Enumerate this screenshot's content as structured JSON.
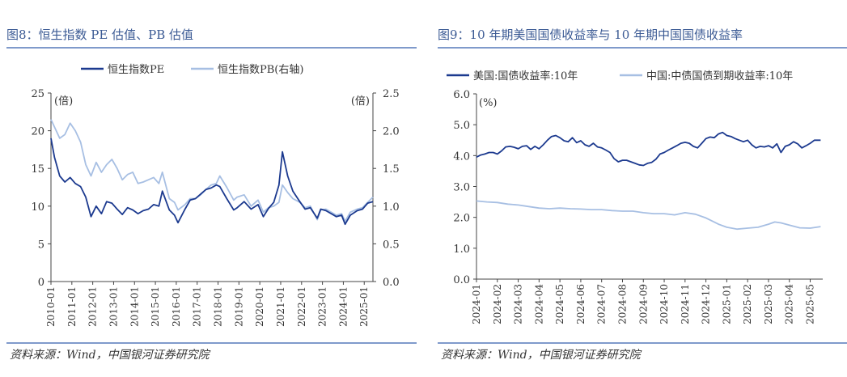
{
  "panels": {
    "left": {
      "title": "图8：恒生指数 PE 估值、PB 估值",
      "source": "资料来源：Wind，中国银河证券研究院"
    },
    "right": {
      "title": "图9：10 年期美国国债收益率与 10 年期中国国债收益率",
      "source": "资料来源：Wind，中国银河证券研究院"
    }
  },
  "chart_data": [
    {
      "type": "line",
      "title": "",
      "xlabel": "",
      "ylabel": "",
      "y_unit_left": "(倍)",
      "y_unit_right": "(倍)",
      "ylim": [
        0,
        25
      ],
      "y2lim": [
        0,
        2.5
      ],
      "yticks": [
        0,
        5,
        10,
        15,
        20,
        25
      ],
      "y2ticks": [
        "0.0",
        "0.5",
        "1.0",
        "1.5",
        "2.0",
        "2.5"
      ],
      "x_range": [
        "2010-01",
        "2025-06"
      ],
      "xtick_labels": [
        "2010-01",
        "2011-01",
        "2012-01",
        "2013-01",
        "2014-01",
        "2015-01",
        "2016-01",
        "2017-01",
        "2018-01",
        "2019-01",
        "2020-01",
        "2021-01",
        "2022-01",
        "2023-01",
        "2024-01",
        "2025-01"
      ],
      "grid": false,
      "legend": "top-center",
      "series": [
        {
          "name": "恒生指数PE",
          "axis": "left",
          "color": "#1c3a8f",
          "x": [
            "2010-01",
            "2010-03",
            "2010-06",
            "2010-09",
            "2010-12",
            "2011-03",
            "2011-06",
            "2011-09",
            "2011-12",
            "2012-03",
            "2012-06",
            "2012-09",
            "2012-12",
            "2013-03",
            "2013-06",
            "2013-09",
            "2013-12",
            "2014-03",
            "2014-06",
            "2014-09",
            "2014-12",
            "2015-03",
            "2015-05",
            "2015-09",
            "2015-12",
            "2016-02",
            "2016-06",
            "2016-09",
            "2016-12",
            "2017-03",
            "2017-06",
            "2017-09",
            "2017-12",
            "2018-02",
            "2018-06",
            "2018-10",
            "2018-12",
            "2019-04",
            "2019-08",
            "2019-12",
            "2020-03",
            "2020-06",
            "2020-09",
            "2020-12",
            "2021-02",
            "2021-05",
            "2021-08",
            "2021-12",
            "2022-03",
            "2022-06",
            "2022-10",
            "2022-12",
            "2023-03",
            "2023-06",
            "2023-09",
            "2023-12",
            "2024-02",
            "2024-05",
            "2024-09",
            "2024-12",
            "2025-03",
            "2025-06"
          ],
          "values": [
            19.0,
            16.5,
            14.0,
            13.2,
            13.8,
            13.0,
            12.6,
            11.2,
            8.6,
            10.0,
            9.0,
            10.6,
            10.4,
            9.6,
            8.9,
            9.8,
            9.5,
            9.0,
            9.4,
            9.6,
            10.2,
            10.0,
            12.0,
            9.5,
            8.8,
            7.8,
            9.6,
            10.8,
            11.0,
            11.6,
            12.2,
            12.4,
            12.8,
            12.6,
            11.0,
            9.5,
            9.8,
            10.6,
            9.6,
            10.2,
            8.6,
            9.7,
            10.5,
            12.8,
            17.2,
            14.0,
            12.0,
            10.6,
            9.6,
            9.8,
            8.4,
            9.6,
            9.4,
            9.0,
            8.6,
            8.8,
            7.6,
            8.8,
            9.4,
            9.6,
            10.4,
            10.6
          ]
        },
        {
          "name": "恒生指数PB(右轴)",
          "axis": "right",
          "color": "#a7bfe3",
          "x": [
            "2010-01",
            "2010-03",
            "2010-06",
            "2010-09",
            "2010-12",
            "2011-03",
            "2011-06",
            "2011-09",
            "2011-12",
            "2012-03",
            "2012-06",
            "2012-09",
            "2012-12",
            "2013-03",
            "2013-06",
            "2013-09",
            "2013-12",
            "2014-03",
            "2014-06",
            "2014-09",
            "2014-12",
            "2015-03",
            "2015-05",
            "2015-09",
            "2015-12",
            "2016-02",
            "2016-06",
            "2016-09",
            "2016-12",
            "2017-03",
            "2017-06",
            "2017-09",
            "2017-12",
            "2018-02",
            "2018-06",
            "2018-10",
            "2018-12",
            "2019-04",
            "2019-08",
            "2019-12",
            "2020-03",
            "2020-06",
            "2020-09",
            "2020-12",
            "2021-02",
            "2021-05",
            "2021-08",
            "2021-12",
            "2022-03",
            "2022-06",
            "2022-10",
            "2022-12",
            "2023-03",
            "2023-06",
            "2023-09",
            "2023-12",
            "2024-02",
            "2024-05",
            "2024-09",
            "2024-12",
            "2025-03",
            "2025-06"
          ],
          "values": [
            2.15,
            2.05,
            1.9,
            1.95,
            2.1,
            2.0,
            1.85,
            1.55,
            1.4,
            1.58,
            1.45,
            1.55,
            1.62,
            1.5,
            1.35,
            1.42,
            1.45,
            1.3,
            1.32,
            1.35,
            1.38,
            1.3,
            1.45,
            1.1,
            1.05,
            0.95,
            1.02,
            1.1,
            1.1,
            1.15,
            1.22,
            1.28,
            1.3,
            1.4,
            1.25,
            1.08,
            1.12,
            1.15,
            1.0,
            1.08,
            0.92,
            0.98,
            1.0,
            1.05,
            1.28,
            1.18,
            1.1,
            1.05,
            0.98,
            1.0,
            0.82,
            0.95,
            0.96,
            0.92,
            0.88,
            0.9,
            0.8,
            0.92,
            0.96,
            0.98,
            1.05,
            1.12
          ]
        }
      ]
    },
    {
      "type": "line",
      "title": "",
      "xlabel": "",
      "ylabel": "",
      "y_unit_left": "(%)",
      "ylim": [
        0,
        6
      ],
      "yticks": [
        "0.0",
        "1.0",
        "2.0",
        "3.0",
        "4.0",
        "5.0",
        "6.0"
      ],
      "x_range": [
        "2024-01",
        "2025-05"
      ],
      "xtick_labels": [
        "2024-01",
        "2024-02",
        "2024-03",
        "2024-04",
        "2024-05",
        "2024-06",
        "2024-07",
        "2024-08",
        "2024-09",
        "2024-10",
        "2024-11",
        "2024-12",
        "2025-01",
        "2025-02",
        "2025-03",
        "2025-04",
        "2025-05"
      ],
      "grid": false,
      "legend": "top-center",
      "series": [
        {
          "name": "美国:国债收益率:10年",
          "color": "#1c3a8f",
          "x": [
            0,
            0.2,
            0.4,
            0.6,
            0.8,
            1.0,
            1.2,
            1.4,
            1.6,
            1.8,
            2.0,
            2.2,
            2.4,
            2.6,
            2.8,
            3.0,
            3.2,
            3.4,
            3.6,
            3.8,
            4.0,
            4.2,
            4.4,
            4.6,
            4.8,
            5.0,
            5.2,
            5.4,
            5.6,
            5.8,
            6.0,
            6.2,
            6.4,
            6.6,
            6.8,
            7.0,
            7.2,
            7.4,
            7.6,
            7.8,
            8.0,
            8.2,
            8.4,
            8.6,
            8.8,
            9.0,
            9.2,
            9.4,
            9.6,
            9.8,
            10.0,
            10.2,
            10.4,
            10.6,
            10.8,
            11.0,
            11.2,
            11.4,
            11.6,
            11.8,
            12.0,
            12.2,
            12.4,
            12.6,
            12.8,
            13.0,
            13.2,
            13.4,
            13.6,
            13.8,
            14.0,
            14.2,
            14.4,
            14.6,
            14.8,
            15.0,
            15.2,
            15.4,
            15.6,
            15.8,
            16.0,
            16.2,
            16.5
          ],
          "values": [
            3.95,
            4.02,
            4.05,
            4.1,
            4.1,
            4.05,
            4.15,
            4.28,
            4.3,
            4.27,
            4.22,
            4.3,
            4.32,
            4.2,
            4.3,
            4.22,
            4.35,
            4.5,
            4.62,
            4.65,
            4.58,
            4.48,
            4.45,
            4.58,
            4.42,
            4.48,
            4.35,
            4.3,
            4.4,
            4.28,
            4.25,
            4.18,
            4.1,
            3.9,
            3.8,
            3.85,
            3.85,
            3.8,
            3.75,
            3.7,
            3.68,
            3.75,
            3.78,
            3.88,
            4.05,
            4.1,
            4.18,
            4.25,
            4.32,
            4.4,
            4.43,
            4.4,
            4.3,
            4.25,
            4.4,
            4.55,
            4.6,
            4.58,
            4.7,
            4.75,
            4.65,
            4.62,
            4.55,
            4.5,
            4.45,
            4.5,
            4.35,
            4.25,
            4.3,
            4.28,
            4.32,
            4.25,
            4.38,
            4.1,
            4.3,
            4.35,
            4.45,
            4.38,
            4.25,
            4.32,
            4.4,
            4.5,
            4.5
          ]
        },
        {
          "name": "中国:中债国债到期收益率:10年",
          "color": "#a7bfe3",
          "x": [
            0,
            0.5,
            1.0,
            1.5,
            2.0,
            2.5,
            3.0,
            3.5,
            4.0,
            4.5,
            5.0,
            5.5,
            6.0,
            6.5,
            7.0,
            7.5,
            8.0,
            8.5,
            9.0,
            9.5,
            10.0,
            10.5,
            11.0,
            11.3,
            11.6,
            12.0,
            12.5,
            13.0,
            13.5,
            14.0,
            14.3,
            14.6,
            15.0,
            15.5,
            16.0,
            16.5
          ],
          "values": [
            2.53,
            2.5,
            2.48,
            2.43,
            2.4,
            2.35,
            2.3,
            2.28,
            2.3,
            2.28,
            2.27,
            2.25,
            2.25,
            2.22,
            2.2,
            2.2,
            2.15,
            2.12,
            2.12,
            2.08,
            2.15,
            2.1,
            1.98,
            1.88,
            1.78,
            1.68,
            1.62,
            1.65,
            1.68,
            1.78,
            1.85,
            1.82,
            1.75,
            1.66,
            1.65,
            1.7
          ]
        }
      ]
    }
  ]
}
